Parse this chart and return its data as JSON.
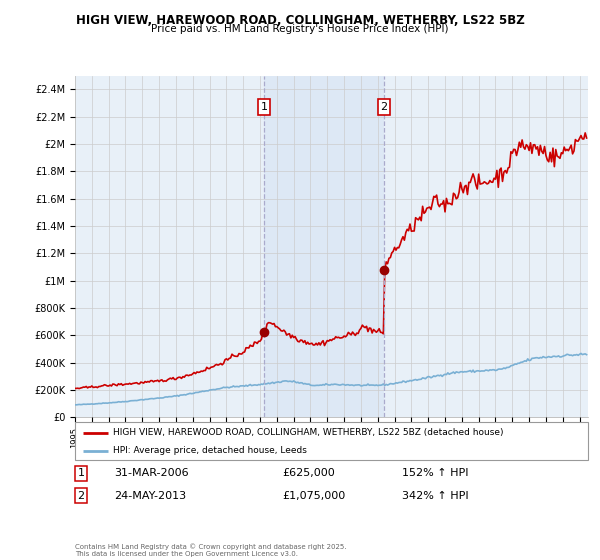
{
  "title_line1": "HIGH VIEW, HAREWOOD ROAD, COLLINGHAM, WETHERBY, LS22 5BZ",
  "title_line2": "Price paid vs. HM Land Registry's House Price Index (HPI)",
  "ylim": [
    0,
    2500000
  ],
  "yticks": [
    0,
    200000,
    400000,
    600000,
    800000,
    1000000,
    1200000,
    1400000,
    1600000,
    1800000,
    2000000,
    2200000,
    2400000
  ],
  "ytick_labels": [
    "£0",
    "£200K",
    "£400K",
    "£600K",
    "£800K",
    "£1M",
    "£1.2M",
    "£1.4M",
    "£1.6M",
    "£1.8M",
    "£2M",
    "£2.2M",
    "£2.4M"
  ],
  "xlim_start": 1995.0,
  "xlim_end": 2025.5,
  "sale1_year": 2006.25,
  "sale1_price": 625000,
  "sale1_label": "1",
  "sale1_date": "31-MAR-2006",
  "sale1_hpi": "152% ↑ HPI",
  "sale2_year": 2013.38,
  "sale2_price": 1075000,
  "sale2_label": "2",
  "sale2_date": "24-MAY-2013",
  "sale2_hpi": "342% ↑ HPI",
  "hpi_line_color": "#7ab0d4",
  "property_line_color": "#cc0000",
  "sale_marker_color": "#990000",
  "dashed_line_color": "#aaaacc",
  "shade_color": "#dce8f5",
  "grid_color": "#cccccc",
  "background_color": "#ffffff",
  "plot_bg_color": "#e8f0f8",
  "legend_property": "HIGH VIEW, HAREWOOD ROAD, COLLINGHAM, WETHERBY, LS22 5BZ (detached house)",
  "legend_hpi": "HPI: Average price, detached house, Leeds",
  "footnote": "Contains HM Land Registry data © Crown copyright and database right 2025.\nThis data is licensed under the Open Government Licence v3.0."
}
